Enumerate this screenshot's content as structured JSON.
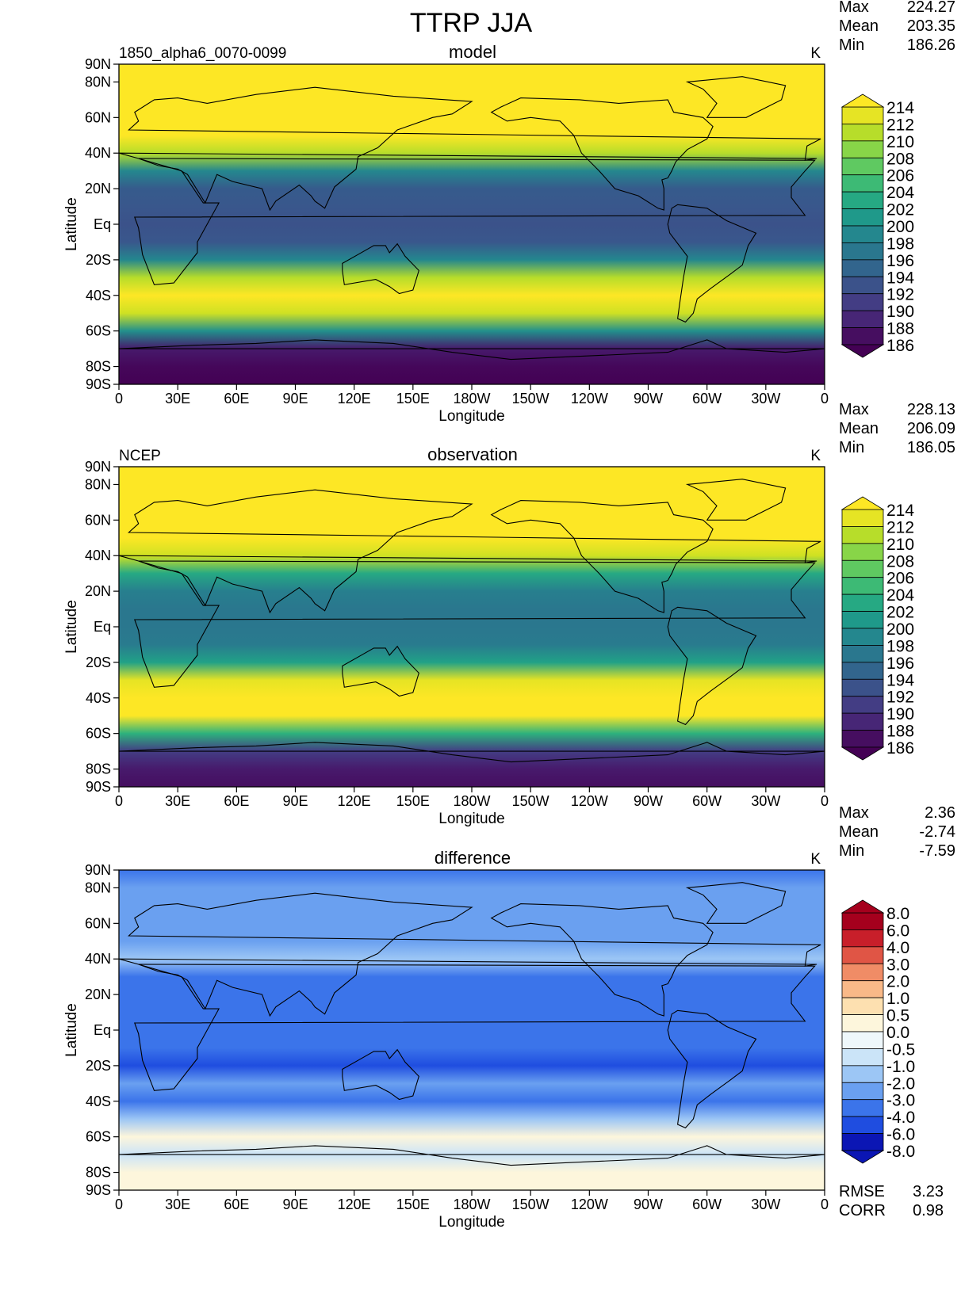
{
  "figure": {
    "title": "TTRP JJA"
  },
  "axes": {
    "lat_ticks": [
      "90N",
      "80N",
      "60N",
      "40N",
      "20N",
      "Eq",
      "20S",
      "40S",
      "60S",
      "80S",
      "90S"
    ],
    "lon_ticks": [
      "0",
      "30E",
      "60E",
      "90E",
      "120E",
      "150E",
      "180W",
      "150W",
      "120W",
      "90W",
      "60W",
      "30W",
      "0"
    ],
    "xlabel": "Longitude",
    "ylabel": "Latitude"
  },
  "panels": [
    {
      "title": "model",
      "left_label": "1850_alpha6_0070-0099",
      "units": "K",
      "stats": [
        {
          "label": "Max",
          "value": "224.27"
        },
        {
          "label": "Mean",
          "value": "203.35"
        },
        {
          "label": "Min",
          "value": "186.26"
        }
      ],
      "colorbar_labels": [
        "214",
        "212",
        "210",
        "208",
        "206",
        "204",
        "202",
        "200",
        "198",
        "196",
        "194",
        "192",
        "190",
        "188",
        "186"
      ]
    },
    {
      "title": "observation",
      "left_label": "NCEP",
      "units": "K",
      "stats": [
        {
          "label": "Max",
          "value": "228.13"
        },
        {
          "label": "Mean",
          "value": "206.09"
        },
        {
          "label": "Min",
          "value": "186.05"
        }
      ],
      "colorbar_labels": [
        "214",
        "212",
        "210",
        "208",
        "206",
        "204",
        "202",
        "200",
        "198",
        "196",
        "194",
        "192",
        "190",
        "188",
        "186"
      ]
    },
    {
      "title": "difference",
      "left_label": "",
      "units": "K",
      "stats": [
        {
          "label": "Max",
          "value": "2.36"
        },
        {
          "label": "Mean",
          "value": "-2.74"
        },
        {
          "label": "Min",
          "value": "-7.59"
        }
      ],
      "colorbar_labels": [
        "8.0",
        "6.0",
        "4.0",
        "3.0",
        "2.0",
        "1.0",
        "0.5",
        "0.0",
        "-0.5",
        "-1.0",
        "-2.0",
        "-3.0",
        "-4.0",
        "-6.0",
        "-8.0"
      ],
      "bottom_stats": [
        {
          "label": "RMSE",
          "value": "3.23"
        },
        {
          "label": "CORR",
          "value": "0.98"
        }
      ]
    }
  ],
  "colors": {
    "viridis": [
      "#440154",
      "#482173",
      "#433e85",
      "#38588c",
      "#2d708e",
      "#25858e",
      "#1e9b8a",
      "#2ab07f",
      "#52c569",
      "#86d549",
      "#c2df23",
      "#fde725"
    ],
    "diverging": [
      "#0b16b4",
      "#1f4de0",
      "#3b74ea",
      "#6aa0f0",
      "#9cc6f5",
      "#cbe4f8",
      "#eef7fb",
      "#fdf6dc",
      "#fde0b0",
      "#f9b988",
      "#f08c66",
      "#e05545",
      "#c81f2a",
      "#a5001d"
    ]
  },
  "chart_data": [
    {
      "type": "heatmap",
      "title": "model",
      "subtitle": "1850_alpha6_0070-0099",
      "units": "K",
      "xlabel": "Longitude",
      "ylabel": "Latitude",
      "xlim": [
        0,
        360
      ],
      "ylim": [
        -90,
        90
      ],
      "clim": [
        186,
        214
      ],
      "levels": [
        186,
        188,
        190,
        192,
        194,
        196,
        198,
        200,
        202,
        204,
        206,
        208,
        210,
        212,
        214
      ],
      "zonal_profile": {
        "lat": [
          -90,
          -80,
          -70,
          -60,
          -50,
          -40,
          -30,
          -20,
          -10,
          0,
          10,
          20,
          30,
          40,
          50,
          60,
          70,
          80,
          90
        ],
        "value": [
          186,
          186.5,
          188,
          200,
          212,
          214,
          211,
          199,
          193.5,
          193,
          193.5,
          194,
          199,
          211,
          216,
          219,
          221,
          223,
          224
        ]
      },
      "stats": {
        "max": 224.27,
        "mean": 203.35,
        "min": 186.26
      }
    },
    {
      "type": "heatmap",
      "title": "observation",
      "subtitle": "NCEP",
      "units": "K",
      "xlabel": "Longitude",
      "ylabel": "Latitude",
      "xlim": [
        0,
        360
      ],
      "ylim": [
        -90,
        90
      ],
      "clim": [
        186,
        214
      ],
      "levels": [
        186,
        188,
        190,
        192,
        194,
        196,
        198,
        200,
        202,
        204,
        206,
        208,
        210,
        212,
        214
      ],
      "zonal_profile": {
        "lat": [
          -90,
          -80,
          -70,
          -60,
          -50,
          -40,
          -30,
          -20,
          -10,
          0,
          10,
          20,
          30,
          40,
          50,
          60,
          70,
          80,
          90
        ],
        "value": [
          187,
          188,
          191,
          204,
          214,
          216,
          213,
          202,
          197.5,
          197,
          197,
          198,
          203,
          212,
          218,
          221,
          223,
          226,
          228
        ]
      },
      "stats": {
        "max": 228.13,
        "mean": 206.09,
        "min": 186.05
      }
    },
    {
      "type": "heatmap",
      "title": "difference",
      "units": "K",
      "xlabel": "Longitude",
      "ylabel": "Latitude",
      "xlim": [
        0,
        360
      ],
      "ylim": [
        -90,
        90
      ],
      "levels": [
        -8.0,
        -6.0,
        -4.0,
        -3.0,
        -2.0,
        -1.0,
        -0.5,
        0.0,
        0.5,
        1.0,
        2.0,
        3.0,
        4.0,
        6.0,
        8.0
      ],
      "zonal_profile": {
        "lat": [
          -90,
          -80,
          -70,
          -60,
          -50,
          -40,
          -30,
          -20,
          -10,
          0,
          10,
          20,
          30,
          40,
          50,
          60,
          70,
          80,
          90
        ],
        "value": [
          0.2,
          0.3,
          -0.6,
          0.4,
          -1.8,
          -3.2,
          -2.6,
          -4.2,
          -3.6,
          -3.0,
          -3.3,
          -3.4,
          -3.0,
          -1.8,
          -2.2,
          -2.2,
          -2.6,
          -2.8,
          -3.0
        ]
      },
      "stats": {
        "max": 2.36,
        "mean": -2.74,
        "min": -7.59,
        "rmse": 3.23,
        "corr": 0.98
      }
    }
  ]
}
